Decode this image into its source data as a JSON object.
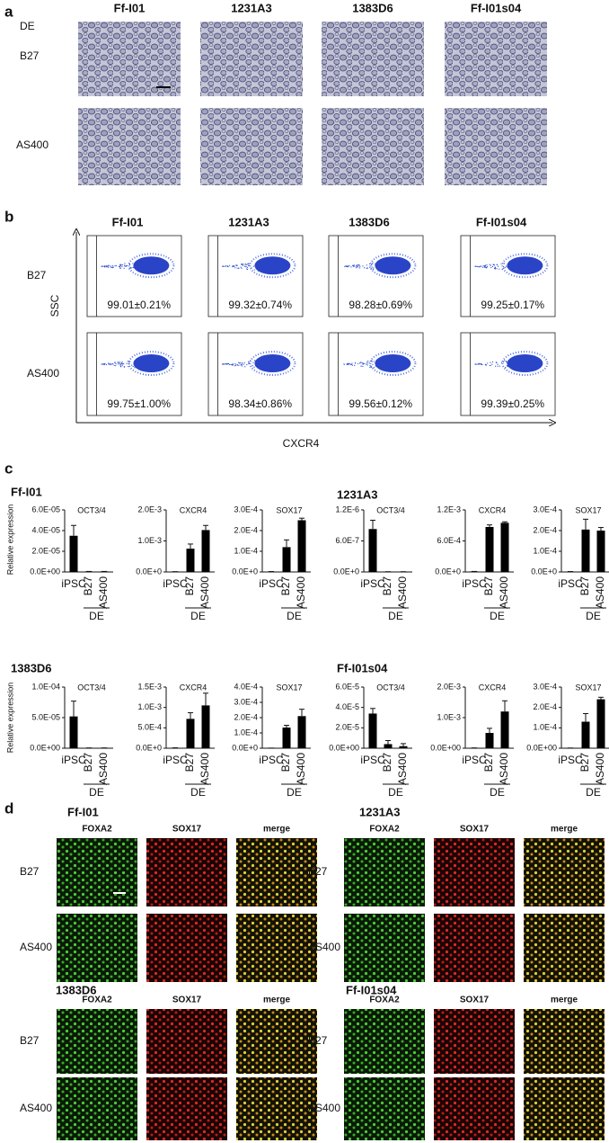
{
  "panel_a": {
    "label": "a",
    "columns": [
      "Ff-I01",
      "1231A3",
      "1383D6",
      "Ff-I01s04"
    ],
    "medium_label": "DE",
    "rows": [
      "B27",
      "AS400"
    ]
  },
  "panel_b": {
    "label": "b",
    "columns": [
      "Ff-I01",
      "1231A3",
      "1383D6",
      "Ff-I01s04"
    ],
    "rows": [
      "B27",
      "AS400"
    ],
    "y_axis": "SSC",
    "x_axis": "CXCR4",
    "percentages": [
      [
        "99.01±0.21%",
        "99.32±0.74%",
        "98.28±0.69%",
        "99.25±0.17%"
      ],
      [
        "99.75±1.00%",
        "98.34±0.86%",
        "99.56±0.12%",
        "99.39±0.25%"
      ]
    ]
  },
  "panel_c": {
    "label": "c",
    "groups": [
      "Ff-I01",
      "1231A3",
      "1383D6",
      "Ff-I01s04"
    ],
    "ylabel": "Relative expression"
  },
  "panel_d": {
    "label": "d",
    "groups": [
      "Ff-I01",
      "1231A3",
      "1383D6",
      "Ff-I01s04"
    ],
    "channels": [
      "FOXA2",
      "SOX17",
      "merge"
    ],
    "rows": [
      "B27",
      "AS400"
    ]
  },
  "chart_data": [
    {
      "type": "bar",
      "title": "OCT3/4",
      "categories": [
        "iPSC",
        "B27",
        "AS400"
      ],
      "values": [
        3.5e-05,
        5e-07,
        5e-07
      ],
      "errors": [
        1e-05,
        0,
        0
      ],
      "color": "#000000",
      "ylim": [
        0,
        6e-05
      ],
      "yticks": [
        {
          "value": 0,
          "label": "0.0E+00"
        },
        {
          "value": 2e-05,
          "label": "2.0E-05"
        },
        {
          "value": 4e-05,
          "label": "4.0E-05"
        },
        {
          "value": 6e-05,
          "label": "6.0E-05"
        }
      ],
      "bracket_label": "DE"
    },
    {
      "type": "bar",
      "title": "CXCR4",
      "categories": [
        "iPSC",
        "B27",
        "AS400"
      ],
      "values": [
        1e-05,
        0.00075,
        0.00135
      ],
      "errors": [
        0,
        0.00015,
        0.00015
      ],
      "color": "#000000",
      "ylim": [
        0,
        0.002
      ],
      "yticks": [
        {
          "value": 0,
          "label": "0.0E+0"
        },
        {
          "value": 0.001,
          "label": "1.0E-3"
        },
        {
          "value": 0.002,
          "label": "2.0E-3"
        }
      ],
      "bracket_label": "DE"
    },
    {
      "type": "bar",
      "title": "SOX17",
      "categories": [
        "iPSC",
        "B27",
        "AS400"
      ],
      "values": [
        2e-06,
        0.00012,
        0.00025
      ],
      "errors": [
        0,
        3.5e-05,
        1e-05
      ],
      "color": "#000000",
      "ylim": [
        0,
        0.0003
      ],
      "yticks": [
        {
          "value": 0,
          "label": "0.0E+0"
        },
        {
          "value": 0.0001,
          "label": "1.0E-4"
        },
        {
          "value": 0.0002,
          "label": "2.0E-4"
        },
        {
          "value": 0.0003,
          "label": "3.0E-4"
        }
      ],
      "bracket_label": "DE"
    },
    {
      "type": "bar",
      "title": "OCT3/4",
      "categories": [
        "iPSC",
        "B27",
        "AS400"
      ],
      "values": [
        8.3e-07,
        5e-09,
        5e-09
      ],
      "errors": [
        1.7e-07,
        0,
        0
      ],
      "color": "#000000",
      "ylim": [
        0,
        1.2e-06
      ],
      "yticks": [
        {
          "value": 0,
          "label": "0.0E+0"
        },
        {
          "value": 6e-07,
          "label": "6.0E-7"
        },
        {
          "value": 1.2e-06,
          "label": "1.2E-6"
        }
      ],
      "bracket_label": "DE"
    },
    {
      "type": "bar",
      "title": "CXCR4",
      "categories": [
        "iPSC",
        "B27",
        "AS400"
      ],
      "values": [
        1e-05,
        0.00087,
        0.00095
      ],
      "errors": [
        0,
        4e-05,
        2e-05
      ],
      "color": "#000000",
      "ylim": [
        0,
        0.0012
      ],
      "yticks": [
        {
          "value": 0,
          "label": "0.0E+0"
        },
        {
          "value": 0.0006,
          "label": "6.0E-4"
        },
        {
          "value": 0.0012,
          "label": "1.2E-3"
        }
      ],
      "bracket_label": "DE"
    },
    {
      "type": "bar",
      "title": "SOX17",
      "categories": [
        "iPSC",
        "B27",
        "AS400"
      ],
      "values": [
        2e-06,
        0.000205,
        0.0002
      ],
      "errors": [
        0,
        5e-05,
        1.5e-05
      ],
      "color": "#000000",
      "ylim": [
        0,
        0.0003
      ],
      "yticks": [
        {
          "value": 0,
          "label": "0.0E+0"
        },
        {
          "value": 0.0001,
          "label": "1.0E-4"
        },
        {
          "value": 0.0002,
          "label": "2.0E-4"
        },
        {
          "value": 0.0003,
          "label": "3.0E-4"
        }
      ],
      "bracket_label": "DE"
    },
    {
      "type": "bar",
      "title": "OCT3/4",
      "categories": [
        "iPSC",
        "B27",
        "AS400"
      ],
      "values": [
        5.2e-05,
        5e-07,
        5e-07
      ],
      "errors": [
        2.5e-05,
        0,
        0
      ],
      "color": "#000000",
      "ylim": [
        0,
        0.0001
      ],
      "yticks": [
        {
          "value": 0,
          "label": "0.0E+00"
        },
        {
          "value": 5e-05,
          "label": "5.0E-05"
        },
        {
          "value": 0.0001,
          "label": "1.0E-04"
        }
      ],
      "bracket_label": "DE"
    },
    {
      "type": "bar",
      "title": "CXCR4",
      "categories": [
        "iPSC",
        "B27",
        "AS400"
      ],
      "values": [
        1e-05,
        0.00072,
        0.00105
      ],
      "errors": [
        0,
        0.00015,
        0.0003
      ],
      "color": "#000000",
      "ylim": [
        0,
        0.0015
      ],
      "yticks": [
        {
          "value": 0,
          "label": "0.0E+0"
        },
        {
          "value": 0.0005,
          "label": "5.0E-4"
        },
        {
          "value": 0.001,
          "label": "1.0E-3"
        },
        {
          "value": 0.0015,
          "label": "1.5E-3"
        }
      ],
      "bracket_label": "DE"
    },
    {
      "type": "bar",
      "title": "SOX17",
      "categories": [
        "iPSC",
        "B27",
        "AS400"
      ],
      "values": [
        1e-06,
        0.000135,
        0.00021
      ],
      "errors": [
        0,
        1.5e-05,
        4.5e-05
      ],
      "color": "#000000",
      "ylim": [
        0,
        0.0004
      ],
      "yticks": [
        {
          "value": 0,
          "label": "0.0E+0"
        },
        {
          "value": 0.0001,
          "label": "1.0E-4"
        },
        {
          "value": 0.0002,
          "label": "2.0E-4"
        },
        {
          "value": 0.0003,
          "label": "3.0E-4"
        },
        {
          "value": 0.0004,
          "label": "4.0E-4"
        }
      ],
      "bracket_label": "DE"
    },
    {
      "type": "bar",
      "title": "OCT3/4",
      "categories": [
        "iPSC",
        "B27",
        "AS400"
      ],
      "values": [
        3.4e-05,
        4e-06,
        2e-06
      ],
      "errors": [
        5e-06,
        3.5e-06,
        2.5e-06
      ],
      "color": "#000000",
      "ylim": [
        0,
        6e-05
      ],
      "yticks": [
        {
          "value": 0,
          "label": "0.0E+00"
        },
        {
          "value": 2e-05,
          "label": "2.0E-5"
        },
        {
          "value": 4e-05,
          "label": "4.0E-5"
        },
        {
          "value": 6e-05,
          "label": "6.0E-5"
        }
      ],
      "bracket_label": "DE"
    },
    {
      "type": "bar",
      "title": "CXCR4",
      "categories": [
        "iPSC",
        "B27",
        "AS400"
      ],
      "values": [
        1e-05,
        0.0005,
        0.0012
      ],
      "errors": [
        0,
        0.00015,
        0.00035
      ],
      "color": "#000000",
      "ylim": [
        0,
        0.002
      ],
      "yticks": [
        {
          "value": 0,
          "label": "0.0E+00"
        },
        {
          "value": 0.001,
          "label": "1.0E-3"
        },
        {
          "value": 0.002,
          "label": "2.0E-3"
        }
      ],
      "bracket_label": "DE"
    },
    {
      "type": "bar",
      "title": "SOX17",
      "categories": [
        "iPSC",
        "B27",
        "AS400"
      ],
      "values": [
        1e-06,
        0.00013,
        0.00024
      ],
      "errors": [
        0,
        4e-05,
        1e-05
      ],
      "color": "#000000",
      "ylim": [
        0,
        0.0003
      ],
      "yticks": [
        {
          "value": 0,
          "label": "0.0E+00"
        },
        {
          "value": 0.0001,
          "label": "1.0E-4"
        },
        {
          "value": 0.0002,
          "label": "2.0E-4"
        },
        {
          "value": 0.0003,
          "label": "3.0E-4"
        }
      ],
      "bracket_label": "DE"
    }
  ]
}
